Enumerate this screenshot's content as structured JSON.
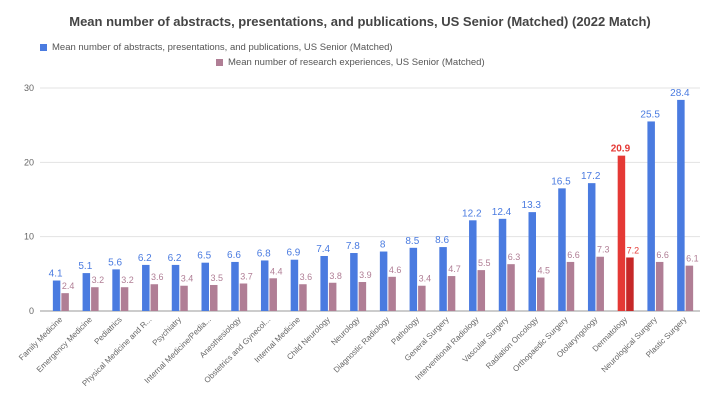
{
  "chart_data": {
    "type": "bar",
    "title": "Mean number of abstracts, presentations, and publications, US Senior (Matched) (2022 Match)",
    "xlabel": "",
    "ylabel": "",
    "ylim": [
      0,
      30
    ],
    "yticks": [
      "0",
      "10",
      "20",
      "30"
    ],
    "grid": true,
    "legend_position": "top",
    "categories": [
      "Family Medicine",
      "Emergency Medicine",
      "Pediatrics",
      "Physical Medicine and R...",
      "Psychiatry",
      "Internal Medicine/Pedia...",
      "Anesthesiology",
      "Obstetrics and Gynecol...",
      "Internal Medicine",
      "Child Neurology",
      "Neurology",
      "Diagnostic Radiology",
      "Pathology",
      "General Surgery",
      "Interventional Radiology",
      "Vascular Surgery",
      "Radiation Oncology",
      "Orthopaedic Surgery",
      "Otolaryngology",
      "Dermatology",
      "Neurological Surgery",
      "Plastic Surgery"
    ],
    "series": [
      {
        "name": "Mean number of abstracts, presentations, and publications, US Senior (Matched)",
        "color": "#4a7be0",
        "values": [
          4.1,
          5.1,
          5.6,
          6.2,
          6.2,
          6.5,
          6.6,
          6.8,
          6.9,
          7.4,
          7.8,
          8,
          8.5,
          8.6,
          12.2,
          12.4,
          13.3,
          16.5,
          17.2,
          20.9,
          25.5,
          28.4
        ],
        "labels": [
          "4.1",
          "5.1",
          "5.6",
          "6.2",
          "6.2",
          "6.5",
          "6.6",
          "6.8",
          "6.9",
          "7.4",
          "7.8",
          "8",
          "8.5",
          "8.6",
          "12.2",
          "12.4",
          "13.3",
          "16.5",
          "17.2",
          "20.9",
          "25.5",
          "28.4"
        ]
      },
      {
        "name": "Mean number of research experiences, US Senior (Matched)",
        "color": "#b07e95",
        "values": [
          2.4,
          3.2,
          3.2,
          3.6,
          3.4,
          3.5,
          3.7,
          4.4,
          3.6,
          3.8,
          3.9,
          4.6,
          3.4,
          4.7,
          5.5,
          6.3,
          4.5,
          6.6,
          7.3,
          7.2,
          6.6,
          6.1
        ],
        "labels": [
          "2.4",
          "3.2",
          "3.2",
          "3.6",
          "3.4",
          "3.5",
          "3.7",
          "4.4",
          "3.6",
          "3.8",
          "3.9",
          "4.6",
          "3.4",
          "4.7",
          "5.5",
          "6.3",
          "4.5",
          "6.6",
          "7.3",
          "7.2",
          "6.6",
          "6.1"
        ]
      }
    ],
    "highlight": {
      "category": "Dermatology",
      "series_colors": [
        "#e53935",
        "#c62828"
      ],
      "label_color": "#e53935"
    }
  }
}
